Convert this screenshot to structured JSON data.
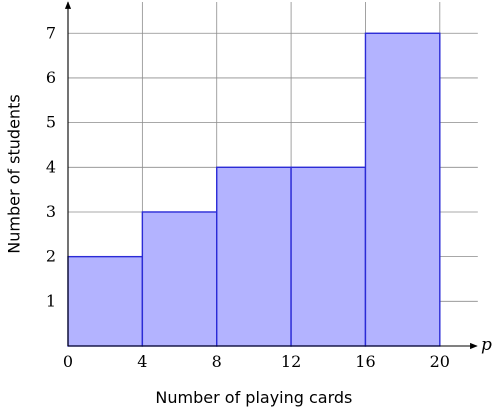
{
  "chart_data": {
    "type": "bar",
    "subtype": "histogram",
    "bins": [
      {
        "from": 0,
        "to": 4,
        "value": 2
      },
      {
        "from": 4,
        "to": 8,
        "value": 3
      },
      {
        "from": 8,
        "to": 12,
        "value": 4
      },
      {
        "from": 12,
        "to": 16,
        "value": 4
      },
      {
        "from": 16,
        "to": 20,
        "value": 7
      }
    ],
    "xlabel": "Number of playing cards",
    "ylabel": "Number of students",
    "x_variable": "p",
    "x_ticks": [
      0,
      4,
      8,
      12,
      16,
      20
    ],
    "y_ticks": [
      1,
      2,
      3,
      4,
      5,
      6,
      7
    ],
    "xlim": [
      0,
      22
    ],
    "ylim": [
      0,
      7.7
    ],
    "grid": true,
    "bar_fill": "#b3b3ff",
    "bar_stroke": "#2b2bd6"
  }
}
